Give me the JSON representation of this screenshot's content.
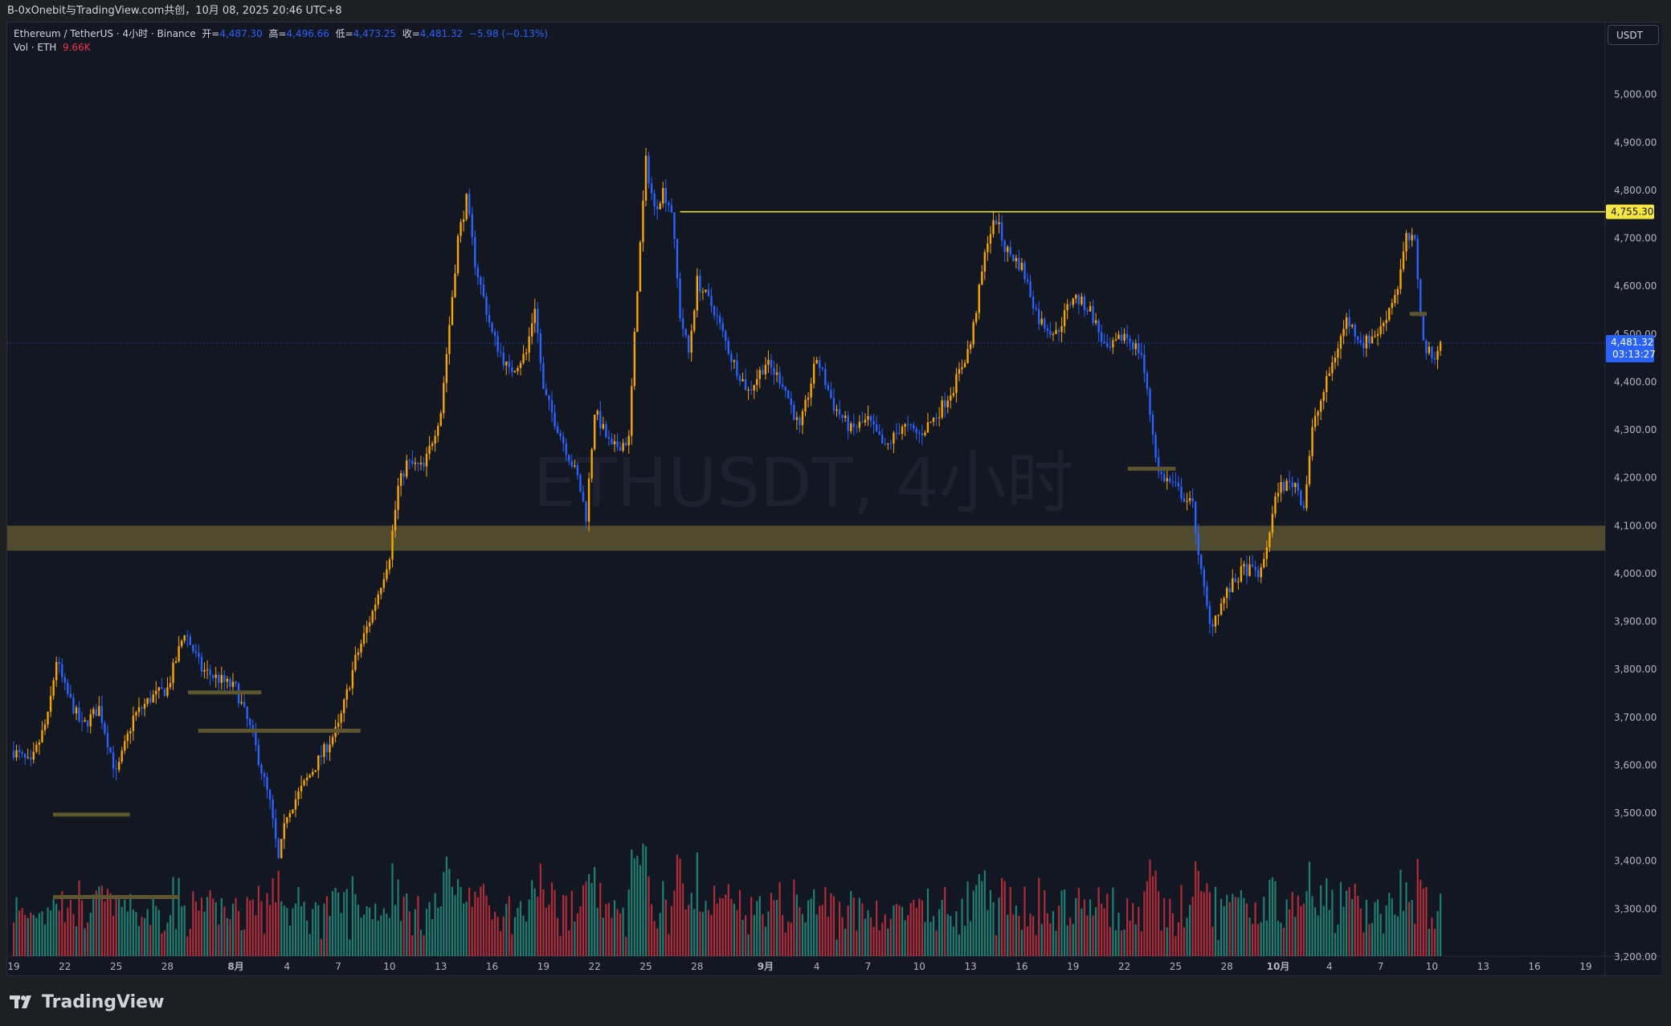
{
  "header": {
    "text": "B-0xOnebit与TradingView.com共创，10月 08, 2025 20:46 UTC+8"
  },
  "legend": {
    "symbol": "Ethereum / TetherUS · 4小时 · Binance",
    "open_label": "开=",
    "open": "4,487.30",
    "high_label": "高=",
    "high": "4,496.66",
    "low_label": "低=",
    "low": "4,473.25",
    "close_label": "收=",
    "close": "4,481.32",
    "change": "−5.98 (−0.13%)",
    "volume_label": "Vol · ETH",
    "volume": "9.66K"
  },
  "price_axis": {
    "unit": "USDT",
    "ticks": [
      "5,000.00",
      "4,900.00",
      "4,800.00",
      "4,700.00",
      "4,600.00",
      "4,500.00",
      "4,400.00",
      "4,300.00",
      "4,200.00",
      "4,100.00",
      "4,000.00",
      "3,900.00",
      "3,800.00",
      "3,700.00",
      "3,600.00",
      "3,500.00",
      "3,400.00",
      "3,300.00",
      "3,200.00"
    ],
    "resistance_label": "4,755.30",
    "last_price_label": "4,481.32",
    "countdown": "03:13:27"
  },
  "watermark": "ETHUSDT, 4小时",
  "brand": "TradingView",
  "colors": {
    "background": "#131722",
    "up": "#f7a600",
    "down": "#2962ff",
    "resistance": "#f5e642",
    "zone": "#5c5530",
    "vol_up": "#22ab94",
    "vol_down": "#f23645"
  },
  "chart_data": {
    "type": "candlestick",
    "title": "ETHUSDT, 4小时",
    "x_tick_labels": [
      "19",
      "22",
      "25",
      "28",
      "8月",
      "4",
      "7",
      "10",
      "13",
      "16",
      "19",
      "22",
      "25",
      "28",
      "9月",
      "4",
      "7",
      "10",
      "13",
      "16",
      "19",
      "22",
      "25",
      "28",
      "10月",
      "4",
      "7",
      "10",
      "13",
      "16",
      "19"
    ],
    "x_tick_days": [
      0,
      3,
      6,
      9,
      13,
      16,
      19,
      22,
      25,
      28,
      31,
      34,
      37,
      40,
      44,
      47,
      50,
      53,
      56,
      59,
      62,
      65,
      68,
      71,
      74,
      77,
      80,
      83,
      86,
      89,
      92
    ],
    "price_range": [
      3200,
      5075
    ],
    "close_path": [
      [
        0,
        3630
      ],
      [
        1,
        3600
      ],
      [
        2,
        3700
      ],
      [
        2.5,
        3820
      ],
      [
        3,
        3760
      ],
      [
        4,
        3680
      ],
      [
        5,
        3720
      ],
      [
        6,
        3580
      ],
      [
        7,
        3700
      ],
      [
        8,
        3740
      ],
      [
        9,
        3760
      ],
      [
        10,
        3880
      ],
      [
        11,
        3800
      ],
      [
        12,
        3780
      ],
      [
        13,
        3760
      ],
      [
        14,
        3660
      ],
      [
        14.5,
        3590
      ],
      [
        15,
        3520
      ],
      [
        15.5,
        3400
      ],
      [
        16,
        3500
      ],
      [
        17,
        3560
      ],
      [
        18,
        3620
      ],
      [
        19,
        3680
      ],
      [
        20,
        3820
      ],
      [
        21,
        3920
      ],
      [
        22,
        4040
      ],
      [
        22.5,
        4180
      ],
      [
        23,
        4230
      ],
      [
        24,
        4220
      ],
      [
        25,
        4340
      ],
      [
        26,
        4700
      ],
      [
        26.5,
        4780
      ],
      [
        27,
        4650
      ],
      [
        28,
        4500
      ],
      [
        29,
        4420
      ],
      [
        30,
        4460
      ],
      [
        30.5,
        4560
      ],
      [
        31,
        4380
      ],
      [
        32,
        4290
      ],
      [
        33,
        4200
      ],
      [
        33.5,
        4120
      ],
      [
        34,
        4340
      ],
      [
        35,
        4260
      ],
      [
        36,
        4280
      ],
      [
        36.5,
        4600
      ],
      [
        37,
        4860
      ],
      [
        37.5,
        4760
      ],
      [
        38,
        4800
      ],
      [
        38.5,
        4760
      ],
      [
        39,
        4540
      ],
      [
        39.5,
        4460
      ],
      [
        40,
        4610
      ],
      [
        41,
        4550
      ],
      [
        42,
        4450
      ],
      [
        43,
        4380
      ],
      [
        44,
        4440
      ],
      [
        45,
        4400
      ],
      [
        46,
        4300
      ],
      [
        47,
        4450
      ],
      [
        48,
        4350
      ],
      [
        49,
        4300
      ],
      [
        50,
        4320
      ],
      [
        51,
        4260
      ],
      [
        52,
        4310
      ],
      [
        53,
        4290
      ],
      [
        54,
        4330
      ],
      [
        55,
        4390
      ],
      [
        56,
        4480
      ],
      [
        57,
        4700
      ],
      [
        57.5,
        4740
      ],
      [
        58,
        4680
      ],
      [
        59,
        4640
      ],
      [
        60,
        4530
      ],
      [
        61,
        4500
      ],
      [
        62,
        4580
      ],
      [
        63,
        4550
      ],
      [
        64,
        4460
      ],
      [
        65,
        4500
      ],
      [
        66,
        4460
      ],
      [
        67,
        4210
      ],
      [
        68,
        4180
      ],
      [
        69,
        4140
      ],
      [
        69.5,
        4000
      ],
      [
        70,
        3890
      ],
      [
        71,
        3960
      ],
      [
        72,
        4010
      ],
      [
        73,
        4000
      ],
      [
        74,
        4180
      ],
      [
        75,
        4190
      ],
      [
        75.5,
        4140
      ],
      [
        76,
        4300
      ],
      [
        77,
        4420
      ],
      [
        78,
        4530
      ],
      [
        79,
        4480
      ],
      [
        80,
        4510
      ],
      [
        81,
        4600
      ],
      [
        81.5,
        4700
      ],
      [
        82,
        4690
      ],
      [
        82.5,
        4480
      ],
      [
        83,
        4450
      ],
      [
        83.5,
        4481
      ]
    ],
    "resistance": 4755.3,
    "resistance_from_day": 39,
    "support_zone": [
      4048,
      4100
    ],
    "minor_levels": [
      {
        "price": 3497,
        "from": 2.3,
        "to": 6.8
      },
      {
        "price": 3325,
        "from": 2.3,
        "to": 9.7
      },
      {
        "price": 3752,
        "from": 10.2,
        "to": 14.5
      },
      {
        "price": 3672,
        "from": 10.8,
        "to": 20.3
      },
      {
        "price": 4219,
        "from": 65.2,
        "to": 68.0
      },
      {
        "price": 4542,
        "from": 81.7,
        "to": 82.7
      }
    ],
    "last_price": 4481.32
  }
}
